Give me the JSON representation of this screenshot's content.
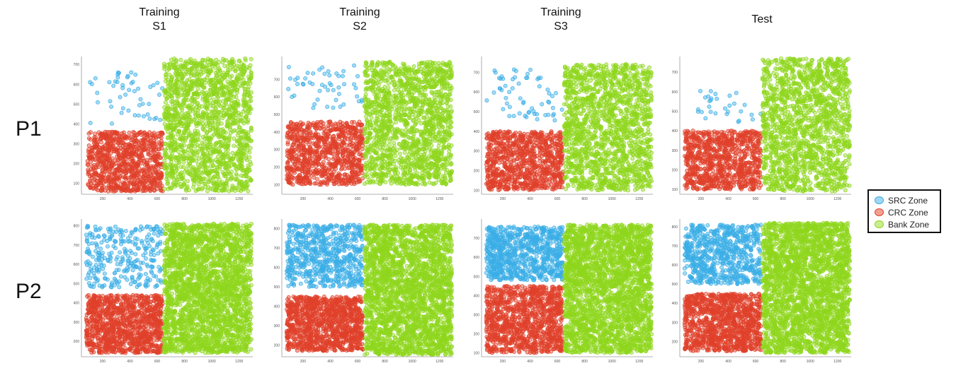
{
  "column_titles": [
    "Training\nS1",
    "Training\nS2",
    "Training\nS3",
    "Test"
  ],
  "row_labels": [
    "P1",
    "P2"
  ],
  "legend": [
    {
      "label": "SRC Zone",
      "color": "#3aaee6"
    },
    {
      "label": "CRC Zone",
      "color": "#e0402a"
    },
    {
      "label": "Bank Zone",
      "color": "#8fd61c"
    }
  ],
  "chart_data": [
    {
      "type": "scatter",
      "row": "P1",
      "column": "Training S1",
      "xlim": [
        45,
        1300
      ],
      "ylim": [
        45,
        740
      ],
      "xticks": [
        200,
        400,
        600,
        800,
        1000,
        1200
      ],
      "yticks": [
        100,
        200,
        300,
        400,
        500,
        600,
        700
      ],
      "series": [
        {
          "name": "SRC Zone",
          "x_range": [
            100,
            640
          ],
          "y_range": [
            400,
            670
          ],
          "approx_points": 50
        },
        {
          "name": "CRC Zone",
          "x_range": [
            90,
            640
          ],
          "y_range": [
            60,
            360
          ],
          "approx_points": 900
        },
        {
          "name": "Bank Zone",
          "x_range": [
            650,
            1290
          ],
          "y_range": [
            60,
            730
          ],
          "approx_points": 1600
        }
      ]
    },
    {
      "type": "scatter",
      "row": "P1",
      "column": "Training S2",
      "xlim": [
        45,
        1300
      ],
      "ylim": [
        45,
        830
      ],
      "xticks": [
        200,
        400,
        600,
        800,
        1000,
        1200
      ],
      "yticks": [
        100,
        200,
        300,
        400,
        500,
        600,
        700
      ],
      "series": [
        {
          "name": "SRC Zone",
          "x_range": [
            80,
            640
          ],
          "y_range": [
            530,
            780
          ],
          "approx_points": 50
        },
        {
          "name": "CRC Zone",
          "x_range": [
            80,
            640
          ],
          "y_range": [
            100,
            460
          ],
          "approx_points": 900
        },
        {
          "name": "Bank Zone",
          "x_range": [
            650,
            1290
          ],
          "y_range": [
            100,
            800
          ],
          "approx_points": 1600
        }
      ]
    },
    {
      "type": "scatter",
      "row": "P1",
      "column": "Training S3",
      "xlim": [
        45,
        1300
      ],
      "ylim": [
        80,
        780
      ],
      "xticks": [
        200,
        400,
        600,
        800,
        1000,
        1200
      ],
      "yticks": [
        100,
        200,
        300,
        400,
        500,
        600,
        700
      ],
      "series": [
        {
          "name": "SRC Zone",
          "x_range": [
            80,
            640
          ],
          "y_range": [
            450,
            720
          ],
          "approx_points": 60
        },
        {
          "name": "CRC Zone",
          "x_range": [
            80,
            640
          ],
          "y_range": [
            100,
            400
          ],
          "approx_points": 900
        },
        {
          "name": "Bank Zone",
          "x_range": [
            650,
            1290
          ],
          "y_range": [
            100,
            740
          ],
          "approx_points": 1600
        }
      ]
    },
    {
      "type": "scatter",
      "row": "P1",
      "column": "Test",
      "xlim": [
        45,
        1300
      ],
      "ylim": [
        75,
        780
      ],
      "xticks": [
        200,
        400,
        600,
        800,
        1000,
        1200
      ],
      "yticks": [
        100,
        200,
        300,
        400,
        500,
        600,
        700
      ],
      "series": [
        {
          "name": "SRC Zone",
          "x_range": [
            170,
            640
          ],
          "y_range": [
            440,
            620
          ],
          "approx_points": 30
        },
        {
          "name": "CRC Zone",
          "x_range": [
            80,
            640
          ],
          "y_range": [
            100,
            400
          ],
          "approx_points": 900
        },
        {
          "name": "Bank Zone",
          "x_range": [
            650,
            1290
          ],
          "y_range": [
            90,
            770
          ],
          "approx_points": 1600
        }
      ]
    },
    {
      "type": "scatter",
      "row": "P2",
      "column": "Training S1",
      "xlim": [
        45,
        1300
      ],
      "ylim": [
        120,
        835
      ],
      "xticks": [
        200,
        400,
        600,
        800,
        1000,
        1200
      ],
      "yticks": [
        200,
        300,
        400,
        500,
        600,
        700,
        800
      ],
      "series": [
        {
          "name": "SRC Zone",
          "x_range": [
            80,
            640
          ],
          "y_range": [
            480,
            800
          ],
          "approx_points": 300
        },
        {
          "name": "CRC Zone",
          "x_range": [
            80,
            640
          ],
          "y_range": [
            140,
            440
          ],
          "approx_points": 1100
        },
        {
          "name": "Bank Zone",
          "x_range": [
            650,
            1290
          ],
          "y_range": [
            140,
            810
          ],
          "approx_points": 2600
        }
      ]
    },
    {
      "type": "scatter",
      "row": "P2",
      "column": "Training S2",
      "xlim": [
        45,
        1300
      ],
      "ylim": [
        140,
        850
      ],
      "xticks": [
        200,
        400,
        600,
        800,
        1000,
        1200
      ],
      "yticks": [
        200,
        300,
        400,
        500,
        600,
        700,
        800
      ],
      "series": [
        {
          "name": "SRC Zone",
          "x_range": [
            80,
            640
          ],
          "y_range": [
            500,
            820
          ],
          "approx_points": 650
        },
        {
          "name": "CRC Zone",
          "x_range": [
            80,
            640
          ],
          "y_range": [
            170,
            450
          ],
          "approx_points": 1100
        },
        {
          "name": "Bank Zone",
          "x_range": [
            650,
            1290
          ],
          "y_range": [
            150,
            820
          ],
          "approx_points": 2600
        }
      ]
    },
    {
      "type": "scatter",
      "row": "P2",
      "column": "Training S3",
      "xlim": [
        45,
        1300
      ],
      "ylim": [
        80,
        800
      ],
      "xticks": [
        200,
        400,
        600,
        800,
        1000,
        1200
      ],
      "yticks": [
        100,
        200,
        300,
        400,
        500,
        600,
        700
      ],
      "series": [
        {
          "name": "SRC Zone",
          "x_range": [
            80,
            640
          ],
          "y_range": [
            480,
            760
          ],
          "approx_points": 800
        },
        {
          "name": "CRC Zone",
          "x_range": [
            80,
            640
          ],
          "y_range": [
            100,
            450
          ],
          "approx_points": 1100
        },
        {
          "name": "Bank Zone",
          "x_range": [
            650,
            1290
          ],
          "y_range": [
            100,
            770
          ],
          "approx_points": 2600
        }
      ]
    },
    {
      "type": "scatter",
      "row": "P2",
      "column": "Test",
      "xlim": [
        45,
        1300
      ],
      "ylim": [
        120,
        840
      ],
      "xticks": [
        200,
        400,
        600,
        800,
        1000,
        1200
      ],
      "yticks": [
        200,
        300,
        400,
        500,
        600,
        700,
        800
      ],
      "series": [
        {
          "name": "SRC Zone",
          "x_range": [
            80,
            640
          ],
          "y_range": [
            500,
            810
          ],
          "approx_points": 700
        },
        {
          "name": "CRC Zone",
          "x_range": [
            80,
            640
          ],
          "y_range": [
            150,
            450
          ],
          "approx_points": 1100
        },
        {
          "name": "Bank Zone",
          "x_range": [
            650,
            1290
          ],
          "y_range": [
            140,
            820
          ],
          "approx_points": 2600
        }
      ]
    }
  ]
}
